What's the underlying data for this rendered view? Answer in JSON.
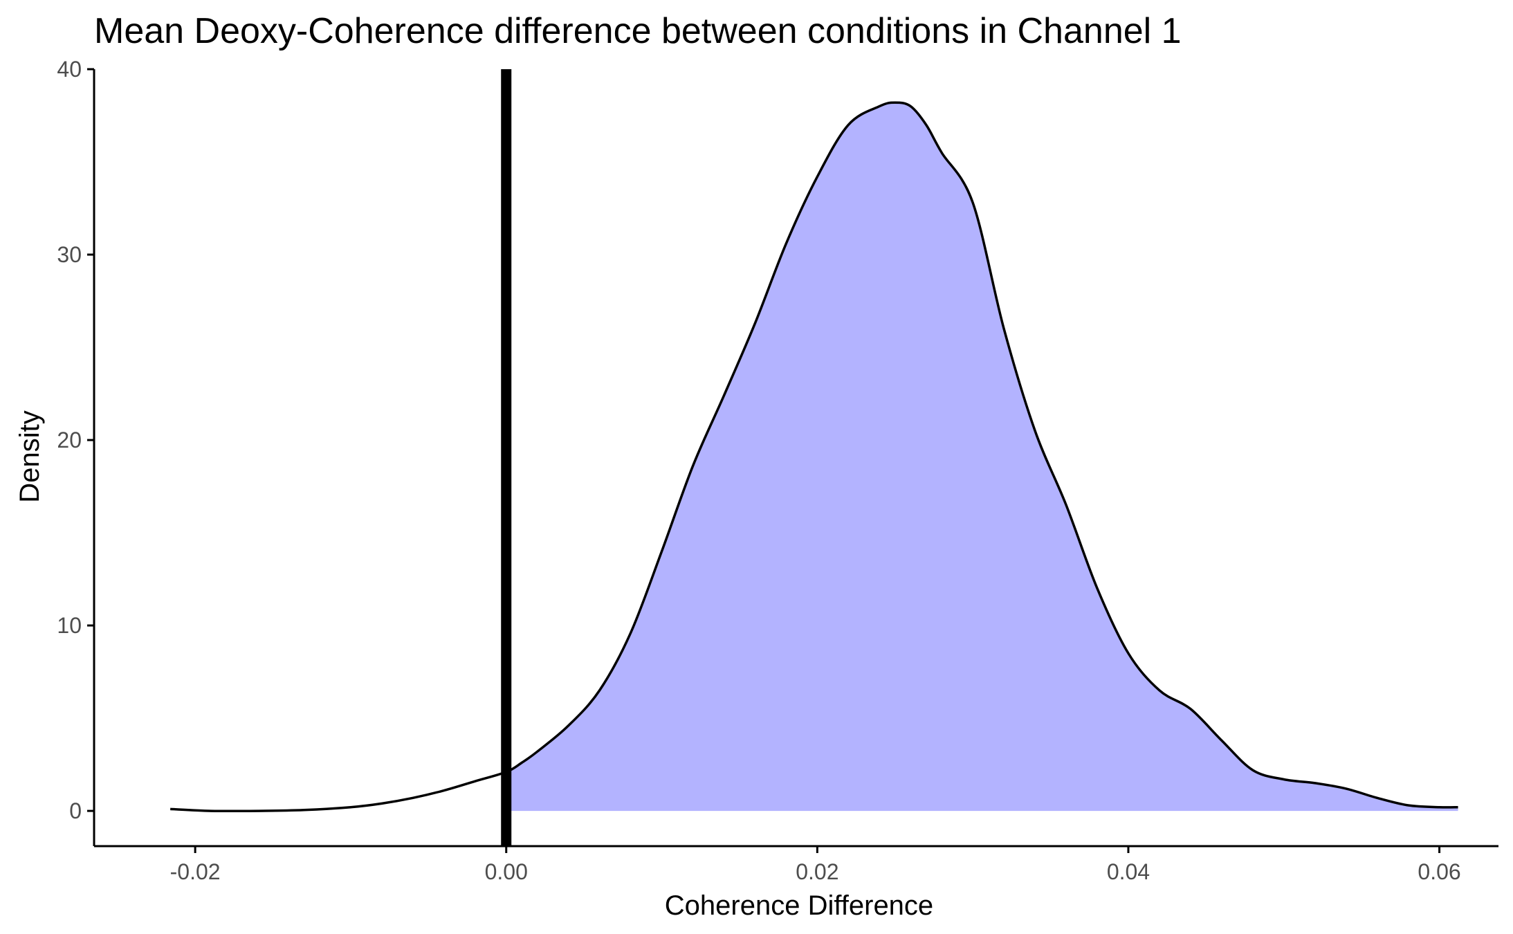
{
  "chart_data": {
    "type": "area",
    "title": "Mean Deoxy-Coherence difference between conditions in Channel 1",
    "xlabel": "Coherence Difference",
    "ylabel": "Density",
    "xlim": [
      -0.0265,
      0.0638
    ],
    "ylim": [
      -1.9,
      40
    ],
    "xticks": [
      -0.02,
      0.0,
      0.02,
      0.04,
      0.06
    ],
    "xtick_labels": [
      "-0.02",
      "0.00",
      "0.02",
      "0.04",
      "0.06"
    ],
    "yticks": [
      0,
      10,
      20,
      30,
      40
    ],
    "ytick_labels": [
      "0",
      "10",
      "20",
      "30",
      "40"
    ],
    "grid": false,
    "fill_color": "#b3b3ff",
    "fill_from_x": 0.0,
    "vline": {
      "x": 0.0,
      "color": "#000000"
    },
    "series": [
      {
        "x": [
          -0.0216,
          -0.019,
          -0.016,
          -0.013,
          -0.01,
          -0.008,
          -0.006,
          -0.004,
          -0.002,
          0.0,
          0.001,
          0.002,
          0.004,
          0.006,
          0.008,
          0.01,
          0.012,
          0.014,
          0.016,
          0.018,
          0.02,
          0.022,
          0.024,
          0.025,
          0.026,
          0.027,
          0.028,
          0.03,
          0.032,
          0.034,
          0.036,
          0.038,
          0.04,
          0.042,
          0.044,
          0.046,
          0.048,
          0.05,
          0.052,
          0.054,
          0.056,
          0.058,
          0.06,
          0.0612
        ],
        "y": [
          0.1,
          0.0,
          0.0,
          0.05,
          0.2,
          0.4,
          0.7,
          1.1,
          1.6,
          2.1,
          2.6,
          3.2,
          4.6,
          6.5,
          9.6,
          14.0,
          18.6,
          22.4,
          26.3,
          30.6,
          34.2,
          37.0,
          38.0,
          38.2,
          38.0,
          37.0,
          35.5,
          32.8,
          26.0,
          20.5,
          16.5,
          12.0,
          8.5,
          6.5,
          5.5,
          3.8,
          2.2,
          1.7,
          1.5,
          1.2,
          0.7,
          0.3,
          0.2,
          0.2
        ]
      }
    ]
  }
}
